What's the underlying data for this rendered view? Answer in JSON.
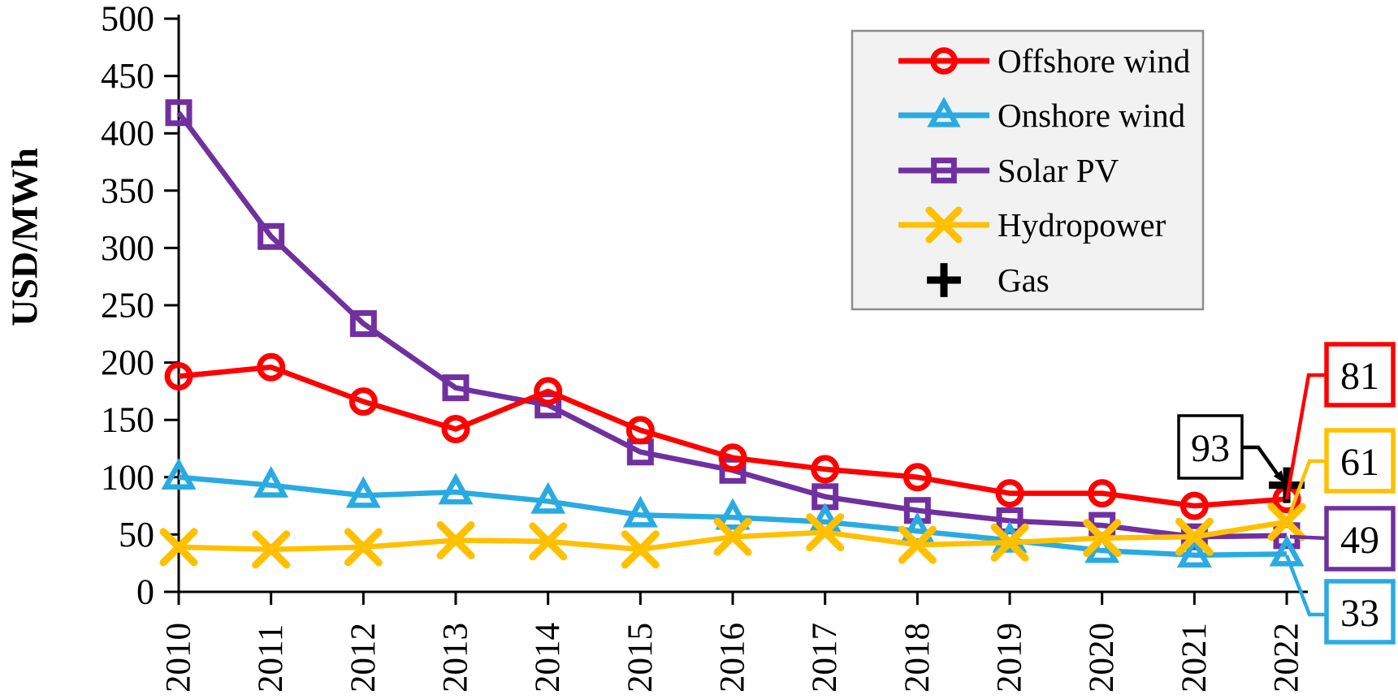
{
  "chart_data": {
    "type": "line",
    "title": "",
    "xlabel": "",
    "ylabel": "USD/MWh",
    "ylim": [
      0,
      500
    ],
    "yticks": [
      0,
      50,
      100,
      150,
      200,
      250,
      300,
      350,
      400,
      450,
      500
    ],
    "categories": [
      "2010",
      "2011",
      "2012",
      "2013",
      "2014",
      "2015",
      "2016",
      "2017",
      "2018",
      "2019",
      "2020",
      "2021",
      "2022"
    ],
    "grid": false,
    "legend_position": "top-right",
    "background_color": "#ffffff",
    "legend_bg_color": "#f2f2f2",
    "legend_border_color": "#8c8c8c",
    "axis_color": "#000000",
    "series": [
      {
        "name": "Offshore wind",
        "color": "#ff0000",
        "marker": "circle",
        "values": [
          188,
          196,
          166,
          142,
          175,
          141,
          117,
          107,
          100,
          86,
          86,
          75,
          81
        ]
      },
      {
        "name": "Onshore wind",
        "color": "#29abe2",
        "marker": "triangle",
        "values": [
          100,
          93,
          84,
          87,
          79,
          67,
          65,
          61,
          53,
          45,
          36,
          32,
          33
        ]
      },
      {
        "name": "Solar PV",
        "color": "#7030a0",
        "marker": "square",
        "values": [
          418,
          310,
          234,
          178,
          163,
          122,
          106,
          83,
          71,
          62,
          58,
          48,
          49
        ]
      },
      {
        "name": "Hydropower",
        "color": "#ffc000",
        "marker": "x",
        "values": [
          39,
          37,
          39,
          45,
          44,
          37,
          48,
          52,
          41,
          43,
          47,
          48,
          61
        ]
      },
      {
        "name": "Gas",
        "color": "#000000",
        "marker": "plus",
        "values": [
          null,
          null,
          null,
          null,
          null,
          null,
          null,
          null,
          null,
          null,
          null,
          null,
          93
        ]
      }
    ],
    "end_labels": [
      {
        "series": "Offshore wind",
        "label": "81"
      },
      {
        "series": "Hydropower",
        "label": "61"
      },
      {
        "series": "Solar PV",
        "label": "49"
      },
      {
        "series": "Onshore wind",
        "label": "33"
      },
      {
        "series": "Gas",
        "label": "93"
      }
    ]
  }
}
